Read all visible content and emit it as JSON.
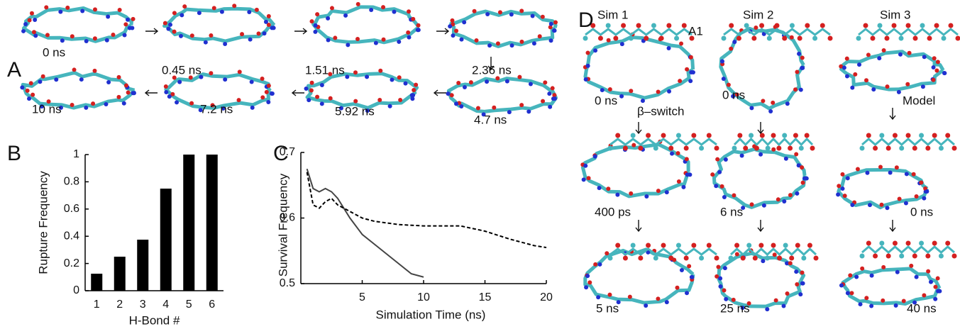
{
  "panel_a": {
    "label": "A",
    "frames": [
      "0 ns",
      "0.45 ns",
      "1.51 ns",
      "2.36 ns",
      "4.7 ns",
      "5.92 ns",
      "7.2 ns",
      "10 ns"
    ]
  },
  "chart_data": [
    {
      "type": "bar",
      "panel_label": "B",
      "y_label": "Rupture Frequency",
      "x_label": "H-Bond #",
      "categories": [
        "1",
        "2",
        "3",
        "4",
        "5",
        "6"
      ],
      "values": [
        0.125,
        0.25,
        0.375,
        0.75,
        1,
        1
      ],
      "color": "#000000",
      "ylim": [
        0,
        1
      ],
      "yticks": [
        0,
        0.2,
        0.4,
        0.6,
        0.8,
        1
      ]
    },
    {
      "type": "line",
      "panel_label": "C",
      "y_label": "Survival Frequency",
      "x_label": "Simulation Time (ns)",
      "xlim": [
        0,
        20
      ],
      "xticks": [
        5,
        10,
        15,
        20
      ],
      "ylim": [
        0.5,
        0.7
      ],
      "yticks": [
        0.5,
        0.6,
        0.7
      ],
      "series": [
        {
          "color": "#444444",
          "dash": "solid",
          "x": [
            0.5,
            1,
            1.5,
            2,
            2.5,
            3,
            4,
            5,
            6,
            7,
            8,
            9,
            10
          ],
          "values": [
            0.675,
            0.645,
            0.64,
            0.645,
            0.64,
            0.63,
            0.6,
            0.575,
            0.56,
            0.545,
            0.53,
            0.515,
            0.51
          ]
        },
        {
          "color": "#000000",
          "dash": "dashed",
          "x": [
            0.5,
            1,
            1.5,
            2,
            2.5,
            3,
            4,
            5,
            6,
            8,
            10,
            12,
            13,
            15,
            17,
            19,
            20
          ],
          "values": [
            0.67,
            0.62,
            0.615,
            0.625,
            0.63,
            0.62,
            0.61,
            0.6,
            0.595,
            0.59,
            0.588,
            0.588,
            0.588,
            0.58,
            0.568,
            0.558,
            0.555
          ]
        }
      ]
    }
  ],
  "panel_d": {
    "label": "D",
    "columns": [
      "Sim 1",
      "Sim 2",
      "Sim 3"
    ],
    "annotations": [
      "A1",
      "β–switch"
    ],
    "frames": [
      [
        "0 ns",
        "400 ps",
        "5 ns"
      ],
      [
        "0 ns",
        "6 ns",
        "25 ns"
      ],
      [
        "Model",
        "0 ns",
        "40 ns"
      ]
    ]
  }
}
